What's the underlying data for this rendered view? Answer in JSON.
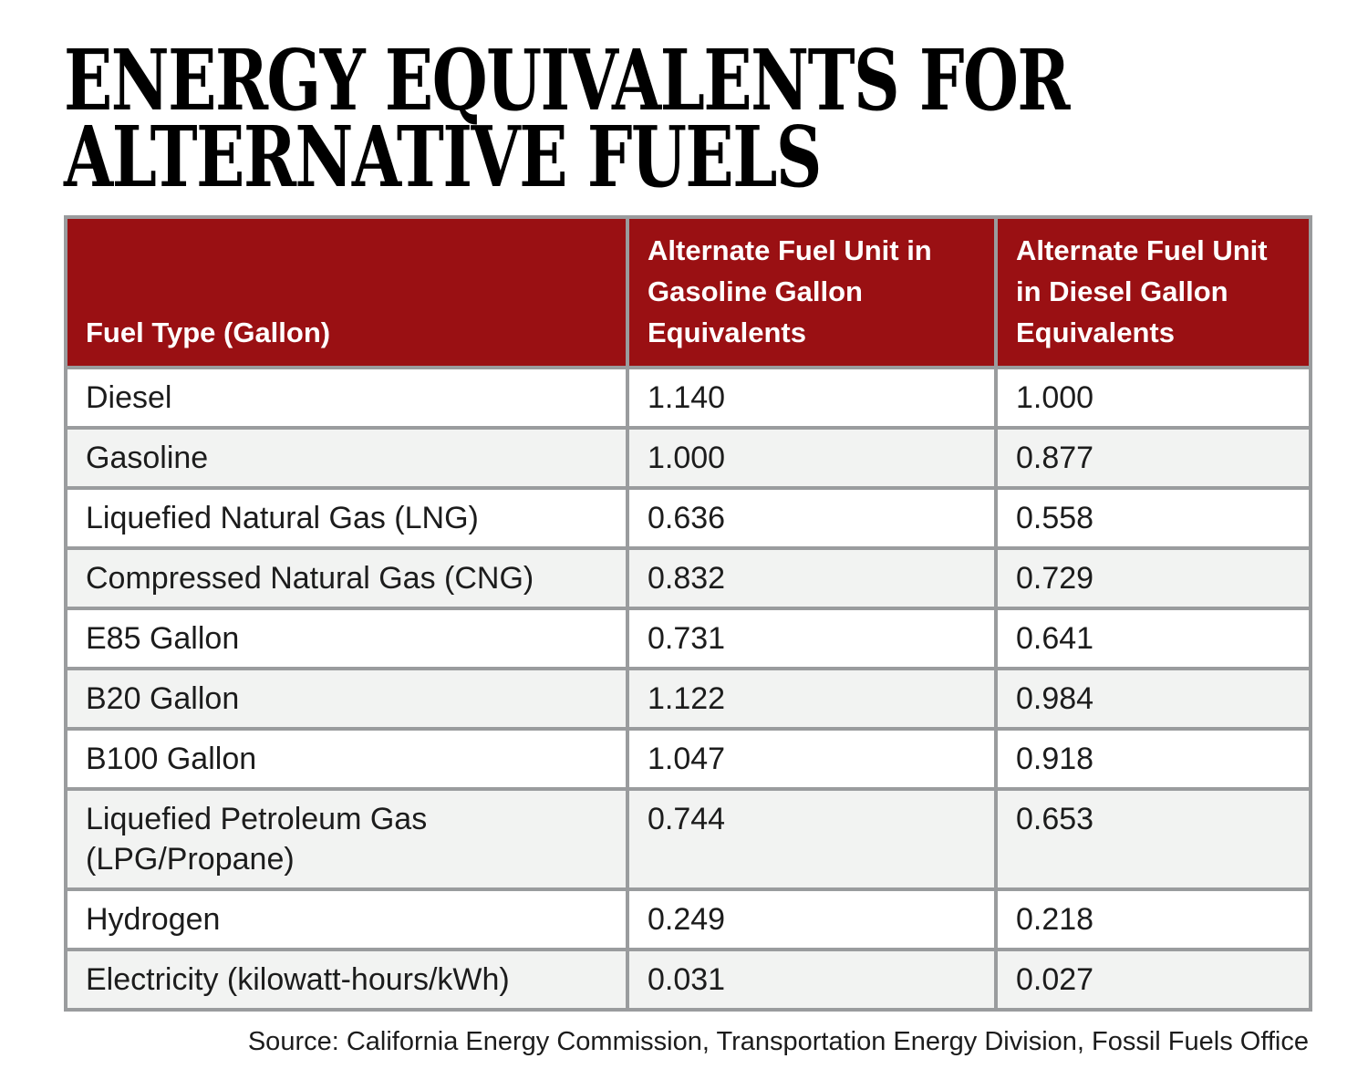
{
  "title_lines": [
    "ENERGY EQUIVALENTS FOR",
    "ALTERNATIVE FUELS"
  ],
  "chart_data": {
    "type": "table",
    "title": "ENERGY EQUIVALENTS FOR ALTERNATIVE FUELS",
    "columns": [
      "Fuel Type (Gallon)",
      "Alternate Fuel Unit in Gasoline Gallon Equivalents",
      "Alternate Fuel Unit in Diesel Gallon Equivalents"
    ],
    "rows": [
      [
        "Diesel",
        "1.140",
        "1.000"
      ],
      [
        "Gasoline",
        "1.000",
        "0.877"
      ],
      [
        "Liquefied Natural Gas (LNG)",
        "0.636",
        "0.558"
      ],
      [
        "Compressed Natural Gas (CNG)",
        "0.832",
        "0.729"
      ],
      [
        "E85 Gallon",
        "0.731",
        "0.641"
      ],
      [
        "B20 Gallon",
        "1.122",
        "0.984"
      ],
      [
        "B100 Gallon",
        "1.047",
        "0.918"
      ],
      [
        "Liquefied Petroleum Gas (LPG/Propane)",
        "0.744",
        "0.653"
      ],
      [
        "Hydrogen",
        "0.249",
        "0.218"
      ],
      [
        "Electricity (kilowatt-hours/kWh)",
        "0.031",
        "0.027"
      ]
    ],
    "source": "Source: California Energy Commission, Transportation Energy Division, Fossil Fuels Office",
    "layout": {
      "row_striping": "alternating white / light gray starting white",
      "legend": "none",
      "grid": "full cell borders"
    }
  },
  "colors": {
    "header_bg": "#9a1013",
    "row_alt_bg": "#f2f3f2",
    "border": "#9a9c9e",
    "header_text": "#ffffff",
    "body_text": "#1c1c1c"
  }
}
